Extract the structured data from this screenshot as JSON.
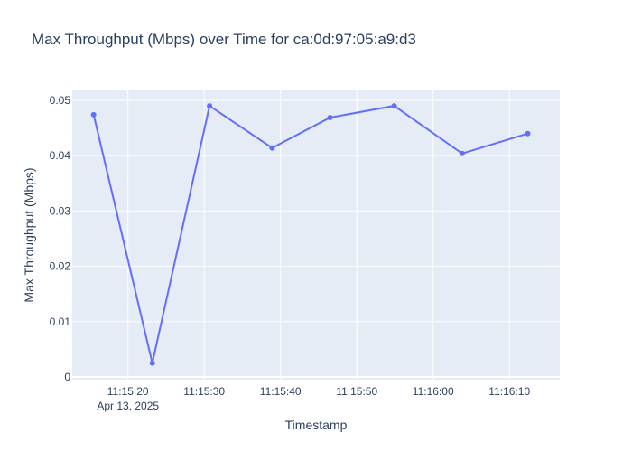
{
  "chart_data": {
    "type": "line",
    "title": "Max Throughput (Mbps) over Time for ca:0d:97:05:a9:d3",
    "xlabel": "Timestamp",
    "ylabel": "Max Throughput (Mbps)",
    "date_label": "Apr 13, 2025",
    "x": [
      "11:15:15.5",
      "11:15:23.2",
      "11:15:30.7",
      "11:15:38.9",
      "11:15:46.5",
      "11:15:54.9",
      "11:16:03.8",
      "11:16:12.4"
    ],
    "series": [
      {
        "values": [
          0.0474,
          0.0025,
          0.049,
          0.0414,
          0.0469,
          0.049,
          0.0404,
          0.044
        ]
      }
    ],
    "x_ticks": [
      "11:15:20",
      "11:15:30",
      "11:15:40",
      "11:15:50",
      "11:16:00",
      "11:16:10"
    ],
    "y_ticks": [
      "0",
      "0.01",
      "0.02",
      "0.03",
      "0.04",
      "0.05"
    ],
    "y_tick_values": [
      0,
      0.01,
      0.02,
      0.03,
      0.04,
      0.05
    ],
    "xlim": [
      "11:15:12.7",
      "11:16:16.6"
    ],
    "ylim": [
      -0.0005,
      0.0518
    ],
    "grid": true,
    "colors": {
      "line": "#636efa",
      "plot_bg": "#e5ecf6",
      "grid": "#ffffff",
      "text": "#2a3f5f"
    }
  }
}
